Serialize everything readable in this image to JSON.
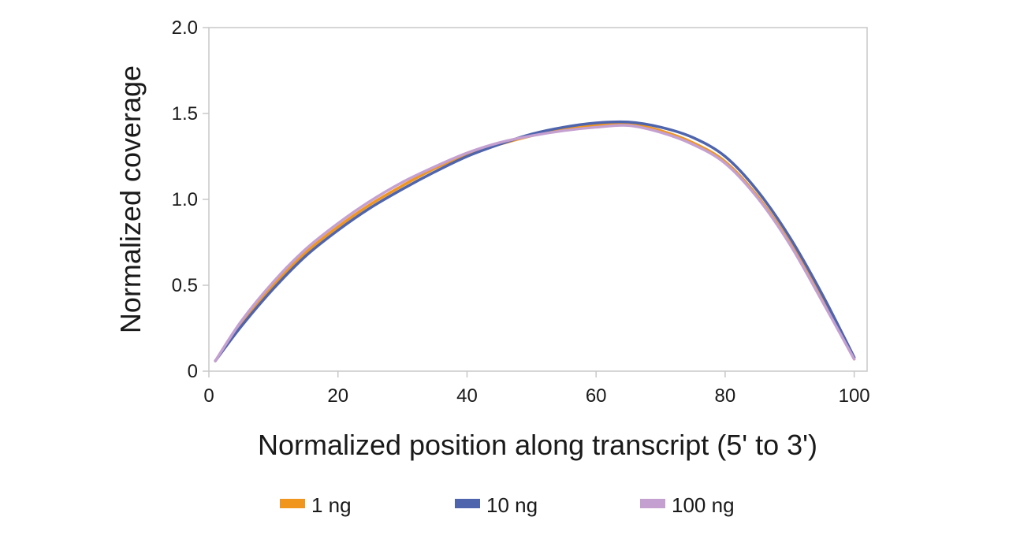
{
  "chart_data": {
    "type": "line",
    "xlabel": "Normalized position along transcript (5' to 3')",
    "ylabel": "Normalized coverage",
    "xlim": [
      0,
      102
    ],
    "ylim": [
      0,
      2.0
    ],
    "x_ticks": [
      0,
      20,
      40,
      60,
      80,
      100
    ],
    "x_tick_labels": [
      "0",
      "20",
      "40",
      "60",
      "80",
      "100"
    ],
    "y_ticks": [
      0,
      0.5,
      1.0,
      1.5,
      2.0
    ],
    "y_tick_labels": [
      "0",
      "0.5",
      "1.0",
      "1.5",
      "2.0"
    ],
    "grid": false,
    "legend_position": "bottom",
    "x": [
      1,
      5,
      10,
      15,
      20,
      25,
      30,
      35,
      40,
      45,
      50,
      55,
      60,
      65,
      70,
      75,
      80,
      85,
      90,
      95,
      100
    ],
    "series": [
      {
        "name": "1 ng",
        "color": "#f0961e",
        "values": [
          0.06,
          0.28,
          0.5,
          0.69,
          0.84,
          0.97,
          1.08,
          1.18,
          1.26,
          1.32,
          1.37,
          1.41,
          1.43,
          1.44,
          1.4,
          1.33,
          1.22,
          1.02,
          0.75,
          0.42,
          0.07
        ]
      },
      {
        "name": "10 ng",
        "color": "#4e64ac",
        "values": [
          0.06,
          0.26,
          0.48,
          0.67,
          0.82,
          0.95,
          1.06,
          1.16,
          1.25,
          1.32,
          1.38,
          1.42,
          1.445,
          1.45,
          1.42,
          1.36,
          1.25,
          1.05,
          0.78,
          0.45,
          0.08
        ]
      },
      {
        "name": "100 ng",
        "color": "#c4a0d0",
        "values": [
          0.06,
          0.29,
          0.52,
          0.71,
          0.86,
          0.99,
          1.1,
          1.19,
          1.27,
          1.33,
          1.37,
          1.4,
          1.42,
          1.43,
          1.39,
          1.32,
          1.21,
          1.01,
          0.74,
          0.41,
          0.07
        ]
      }
    ]
  }
}
